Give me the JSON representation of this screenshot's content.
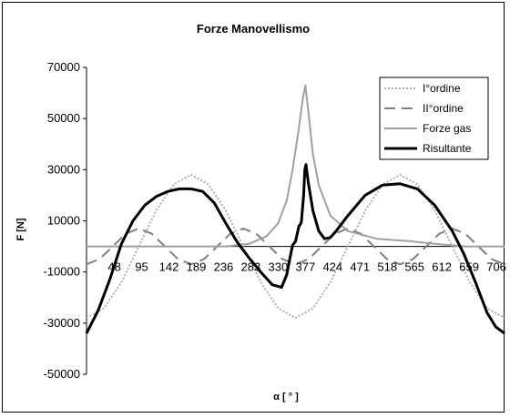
{
  "chart_data": {
    "type": "line",
    "title": "Forze Manovellismo",
    "xlabel": "α  [ ° ]",
    "ylabel": "F [N]",
    "xlim": [
      0,
      720
    ],
    "ylim": [
      -50000,
      70000
    ],
    "y_ticks": [
      70000,
      50000,
      30000,
      10000,
      -10000,
      -30000,
      -50000
    ],
    "y_tick_labels": [
      "70000",
      "50000",
      "30000",
      "10000",
      "-10000",
      "-30000",
      "-50000"
    ],
    "x_ticks": [
      48,
      95,
      142,
      189,
      236,
      283,
      330,
      377,
      424,
      471,
      518,
      565,
      612,
      659,
      706
    ],
    "x_tick_labels": [
      "48",
      "95",
      "142",
      "189",
      "236",
      "283",
      "330",
      "377",
      "424",
      "471",
      "518",
      "565",
      "612",
      "659",
      "706"
    ],
    "grid": false,
    "legend_position": "top-right",
    "series": [
      {
        "name": "I°ordine",
        "color": "#b0b0b0",
        "style": "dotted",
        "x": [
          0,
          30,
          60,
          90,
          120,
          150,
          180,
          210,
          240,
          270,
          300,
          330,
          360,
          390,
          420,
          450,
          480,
          510,
          540,
          570,
          600,
          630,
          660,
          690,
          720
        ],
        "y": [
          -28000,
          -24200,
          -14000,
          0,
          14000,
          24200,
          28000,
          24200,
          14000,
          0,
          -14000,
          -24200,
          -28000,
          -24200,
          -14000,
          0,
          14000,
          24200,
          28000,
          24200,
          14000,
          0,
          -14000,
          -24200,
          -28000
        ]
      },
      {
        "name": "II°ordine",
        "color": "#808080",
        "style": "dashed",
        "x": [
          0,
          22.5,
          45,
          67.5,
          90,
          112.5,
          135,
          157.5,
          180,
          202.5,
          225,
          247.5,
          270,
          292.5,
          315,
          337.5,
          360,
          382.5,
          405,
          427.5,
          450,
          472.5,
          495,
          517.5,
          540,
          562.5,
          585,
          607.5,
          630,
          652.5,
          675,
          697.5,
          720
        ],
        "y": [
          -7000,
          -4950,
          0,
          4950,
          7000,
          4950,
          0,
          -4950,
          -7000,
          -4950,
          0,
          4950,
          7000,
          4950,
          0,
          -4950,
          -7000,
          -4950,
          0,
          4950,
          7000,
          4950,
          0,
          -4950,
          -7000,
          -4950,
          0,
          4950,
          7000,
          4950,
          0,
          -4950,
          -7000
        ]
      },
      {
        "name": "Forze gas",
        "color": "#a0a0a0",
        "style": "solid",
        "x": [
          0,
          60,
          120,
          180,
          240,
          280,
          310,
          330,
          345,
          355,
          365,
          372,
          377,
          382,
          390,
          400,
          420,
          450,
          500,
          560,
          600,
          650,
          720
        ],
        "y": [
          0,
          0,
          0,
          0,
          0,
          1000,
          4000,
          9000,
          18000,
          30000,
          45000,
          57000,
          63000,
          53000,
          36000,
          24000,
          12000,
          6000,
          3000,
          2000,
          1000,
          0,
          0
        ]
      },
      {
        "name": "Risultante",
        "color": "#000000",
        "style": "solid-thick",
        "x": [
          0,
          20,
          40,
          60,
          80,
          100,
          120,
          140,
          160,
          180,
          200,
          220,
          240,
          260,
          280,
          300,
          320,
          336,
          345,
          350,
          355,
          360,
          366,
          368,
          370,
          374,
          376,
          378,
          382,
          390,
          400,
          410,
          420,
          430,
          450,
          480,
          510,
          540,
          570,
          600,
          630,
          650,
          670,
          690,
          705,
          720
        ],
        "y": [
          -34000,
          -25000,
          -13000,
          1000,
          10000,
          16000,
          19500,
          21500,
          22500,
          22500,
          21500,
          17000,
          9000,
          1500,
          -4500,
          -10000,
          -15000,
          -16000,
          -11000,
          -5000,
          500,
          2000,
          8000,
          8500,
          9500,
          20000,
          30000,
          32000,
          25000,
          14000,
          6000,
          3000,
          3500,
          6000,
          12000,
          20000,
          24000,
          24500,
          22500,
          16000,
          6000,
          -3000,
          -14000,
          -26000,
          -31500,
          -34000
        ]
      }
    ]
  }
}
